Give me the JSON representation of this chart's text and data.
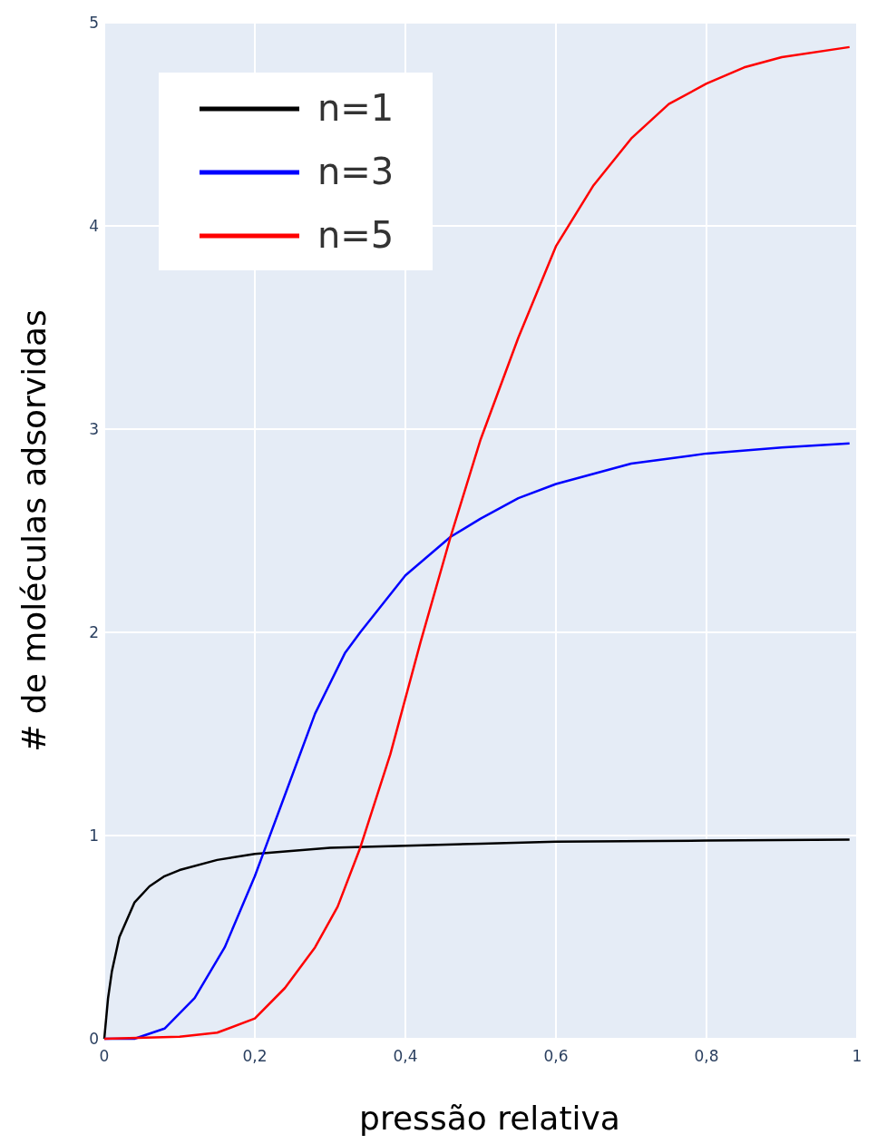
{
  "chart_data": {
    "type": "line",
    "xlabel": "pressão relativa",
    "ylabel": "# de moléculas adsorvidas",
    "xlim": [
      0,
      1
    ],
    "ylim": [
      0,
      5
    ],
    "xticks": [
      0,
      {
        "value": 0.2,
        "label": "0,2"
      },
      {
        "value": 0.4,
        "label": "0,4"
      },
      {
        "value": 0.6,
        "label": "0,6"
      },
      {
        "value": 0.8,
        "label": "0,8"
      },
      1
    ],
    "yticks": [
      0,
      1,
      2,
      3,
      4,
      5
    ],
    "grid": true,
    "legend": "top left",
    "line_style": "solid",
    "marker": "none",
    "series": [
      {
        "name": "n=1",
        "color": "#000000",
        "x": [
          0,
          0.005,
          0.01,
          0.02,
          0.04,
          0.06,
          0.08,
          0.1,
          0.15,
          0.2,
          0.3,
          0.4,
          0.5,
          0.6,
          0.8,
          0.99
        ],
        "values": [
          0,
          0.2,
          0.33,
          0.5,
          0.67,
          0.75,
          0.8,
          0.83,
          0.88,
          0.91,
          0.94,
          0.95,
          0.96,
          0.97,
          0.975,
          0.98
        ]
      },
      {
        "name": "n=3",
        "color": "#0000ff",
        "x": [
          0,
          0.04,
          0.08,
          0.12,
          0.16,
          0.2,
          0.21,
          0.24,
          0.28,
          0.32,
          0.34,
          0.4,
          0.46,
          0.5,
          0.55,
          0.6,
          0.7,
          0.8,
          0.9,
          0.99
        ],
        "values": [
          0,
          0,
          0.05,
          0.2,
          0.45,
          0.8,
          0.9,
          1.2,
          1.6,
          1.9,
          2.0,
          2.28,
          2.47,
          2.56,
          2.66,
          2.73,
          2.83,
          2.88,
          2.91,
          2.93
        ]
      },
      {
        "name": "n=5",
        "color": "#ff0000",
        "x": [
          0,
          0.1,
          0.15,
          0.2,
          0.24,
          0.28,
          0.31,
          0.34,
          0.38,
          0.42,
          0.46,
          0.5,
          0.55,
          0.6,
          0.65,
          0.7,
          0.75,
          0.8,
          0.85,
          0.9,
          0.99
        ],
        "values": [
          0,
          0.01,
          0.03,
          0.1,
          0.25,
          0.45,
          0.65,
          0.94,
          1.4,
          1.95,
          2.47,
          2.95,
          3.45,
          3.9,
          4.2,
          4.43,
          4.6,
          4.7,
          4.78,
          4.83,
          4.88
        ]
      }
    ]
  }
}
